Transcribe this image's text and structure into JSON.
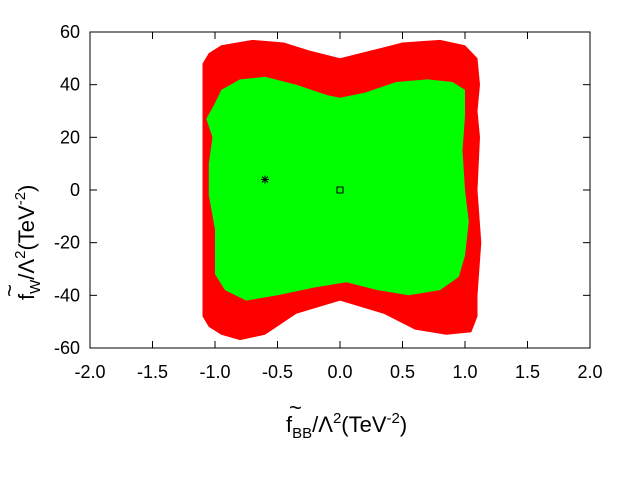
{
  "chart_data": {
    "type": "scatter",
    "title": "",
    "xlabel": {
      "symbol": "f",
      "subscript": "BB",
      "divisor": "/Λ",
      "power": "2",
      "unit_open": "(TeV",
      "unit_power": "-2",
      "unit_close": ")"
    },
    "ylabel": {
      "symbol": "f",
      "subscript": "W",
      "divisor": "/Λ",
      "power": "2",
      "unit_open": "(TeV",
      "unit_power": "-2",
      "unit_close": ")"
    },
    "xlim": [
      -2.0,
      2.0
    ],
    "ylim": [
      -60,
      60
    ],
    "xticks": [
      "-2.0",
      "-1.5",
      "-1.0",
      "-0.5",
      "0.0",
      "0.5",
      "1.0",
      "1.5",
      "2.0"
    ],
    "yticks": [
      "-60",
      "-40",
      "-20",
      "0",
      "20",
      "40",
      "60"
    ],
    "grid": false,
    "regions": [
      {
        "name": "",
        "color": "#ff0000",
        "points": [
          [
            -1.1,
            48
          ],
          [
            -1.05,
            52
          ],
          [
            -0.95,
            55
          ],
          [
            -0.7,
            57
          ],
          [
            -0.45,
            56
          ],
          [
            -0.25,
            53
          ],
          [
            0.0,
            50
          ],
          [
            0.25,
            53
          ],
          [
            0.5,
            56
          ],
          [
            0.8,
            57
          ],
          [
            1.0,
            55
          ],
          [
            1.1,
            50
          ],
          [
            1.12,
            40
          ],
          [
            1.1,
            30
          ],
          [
            1.12,
            20
          ],
          [
            1.1,
            0
          ],
          [
            1.13,
            -20
          ],
          [
            1.1,
            -40
          ],
          [
            1.1,
            -48
          ],
          [
            1.05,
            -54
          ],
          [
            0.85,
            -55
          ],
          [
            0.6,
            -53
          ],
          [
            0.35,
            -47
          ],
          [
            0.0,
            -42
          ],
          [
            -0.35,
            -47
          ],
          [
            -0.6,
            -55
          ],
          [
            -0.8,
            -57
          ],
          [
            -0.95,
            -55
          ],
          [
            -1.05,
            -52
          ],
          [
            -1.1,
            -48
          ],
          [
            -1.1,
            -30
          ],
          [
            -1.1,
            0
          ],
          [
            -1.1,
            30
          ]
        ]
      },
      {
        "name": "",
        "color": "#00ff00",
        "points": [
          [
            -1.0,
            33
          ],
          [
            -0.95,
            38
          ],
          [
            -0.8,
            42
          ],
          [
            -0.6,
            43
          ],
          [
            -0.35,
            40
          ],
          [
            -0.1,
            36
          ],
          [
            0.0,
            35
          ],
          [
            0.2,
            37
          ],
          [
            0.45,
            41
          ],
          [
            0.7,
            42
          ],
          [
            0.9,
            41
          ],
          [
            1.0,
            38
          ],
          [
            1.0,
            28
          ],
          [
            0.98,
            15
          ],
          [
            1.0,
            0
          ],
          [
            1.03,
            -12
          ],
          [
            1.0,
            -25
          ],
          [
            0.95,
            -33
          ],
          [
            0.8,
            -38
          ],
          [
            0.55,
            -40
          ],
          [
            0.3,
            -38
          ],
          [
            0.05,
            -35
          ],
          [
            -0.2,
            -37
          ],
          [
            -0.5,
            -40
          ],
          [
            -0.75,
            -42
          ],
          [
            -0.92,
            -38
          ],
          [
            -1.0,
            -32
          ],
          [
            -1.0,
            -15
          ],
          [
            -1.05,
            -2
          ],
          [
            -1.05,
            10
          ],
          [
            -1.02,
            20
          ],
          [
            -1.07,
            27
          ]
        ]
      }
    ],
    "markers": [
      {
        "name": "",
        "symbol": "asterisk",
        "x": -0.6,
        "y": 4.0
      },
      {
        "name": "",
        "symbol": "square",
        "x": 0.0,
        "y": 0.0
      }
    ]
  }
}
